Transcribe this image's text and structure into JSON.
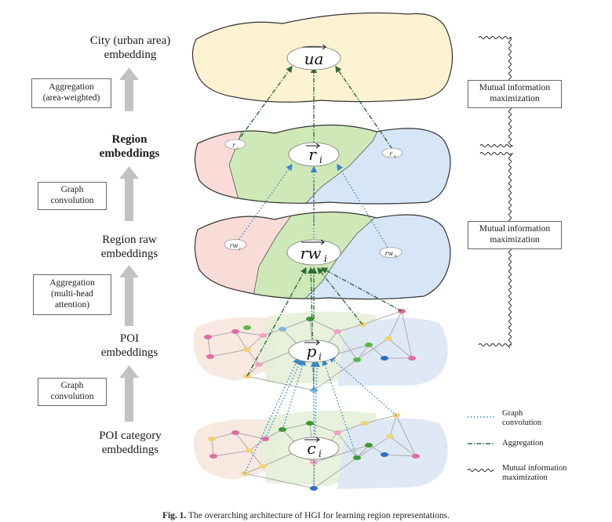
{
  "left_labels": {
    "city": "City (urban area)\nembedding",
    "region": "Region\nembeddings",
    "region_raw": "Region raw\nembeddings",
    "poi": "POI\nembeddings",
    "poi_category": "POI category\nembeddings"
  },
  "op_boxes": {
    "aggregation_area": "Aggregation\n(area-weighted)",
    "graph_conv_1": "Graph\nconvolution",
    "aggregation_attention": "Aggregation\n(multi-head\nattention)",
    "graph_conv_2": "Graph\nconvolution"
  },
  "right_boxes": {
    "mi_top": "Mutual information\nmaximization",
    "mi_bottom": "Mutual information\nmaximization"
  },
  "node_labels": {
    "ua": "ua",
    "r_i": "r",
    "r_j": "r",
    "r_k": "r",
    "rw_i": "rw",
    "rw_j": "rw",
    "rw_k": "rw",
    "p_i": "p",
    "c_i": "c"
  },
  "legend": {
    "graph_conv": "Graph\nconvolution",
    "aggregation": "Aggregation",
    "mutual_info": "Mutual information\nmaximization"
  },
  "caption": {
    "fig": "Fig. 1.",
    "text": "The overarching architecture of HGI for learning region representations."
  },
  "colors": {
    "city": "#fdf2d2",
    "region_pink": "#f9dcd8",
    "region_green": "#cfe8b8",
    "region_blue": "#d6e6f7",
    "graph_conv_line": "#3a86c8",
    "aggregation_line": "#2e6b3a",
    "arrow_gray": "#bdbdbd"
  }
}
